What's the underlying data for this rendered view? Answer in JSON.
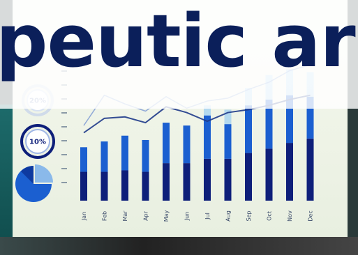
{
  "headline": "peutic area",
  "gauges": [
    {
      "label": "20%",
      "style": "faded"
    },
    {
      "label": "10%",
      "style": "solid"
    }
  ],
  "pie_icon": "pie-chart-icon",
  "colors": {
    "navy": "#0e1f7a",
    "blue": "#1b5fd0",
    "light_blue": "#9fd0f2",
    "line": "#1e3a8a",
    "headline": "#0b1f5a"
  },
  "chart_data": {
    "type": "bar",
    "categories": [
      "Jan",
      "Feb",
      "Mar",
      "Apr",
      "May",
      "Jun",
      "Jul",
      "Aug",
      "Sep",
      "Oct",
      "Nov",
      "Dec"
    ],
    "series": [
      {
        "values": [
          20,
          20,
          21,
          20,
          26,
          26,
          29,
          29,
          33,
          36,
          40,
          43
        ]
      },
      {
        "values": [
          17,
          21,
          24,
          22,
          28,
          26,
          30,
          24,
          33,
          34,
          33,
          29
        ]
      },
      {
        "values": [
          0,
          0,
          0,
          0,
          0,
          0,
          7,
          10,
          12,
          17,
          18,
          17
        ]
      }
    ],
    "lines": [
      {
        "values": [
          47,
          57,
          58,
          54,
          65,
          61,
          55,
          61,
          63,
          66,
          70,
          73
        ]
      },
      {
        "values": [
          52,
          73,
          67,
          62,
          72,
          64,
          69,
          71,
          77,
          82,
          90,
          94
        ]
      }
    ],
    "ylim": [
      0,
      110
    ]
  }
}
